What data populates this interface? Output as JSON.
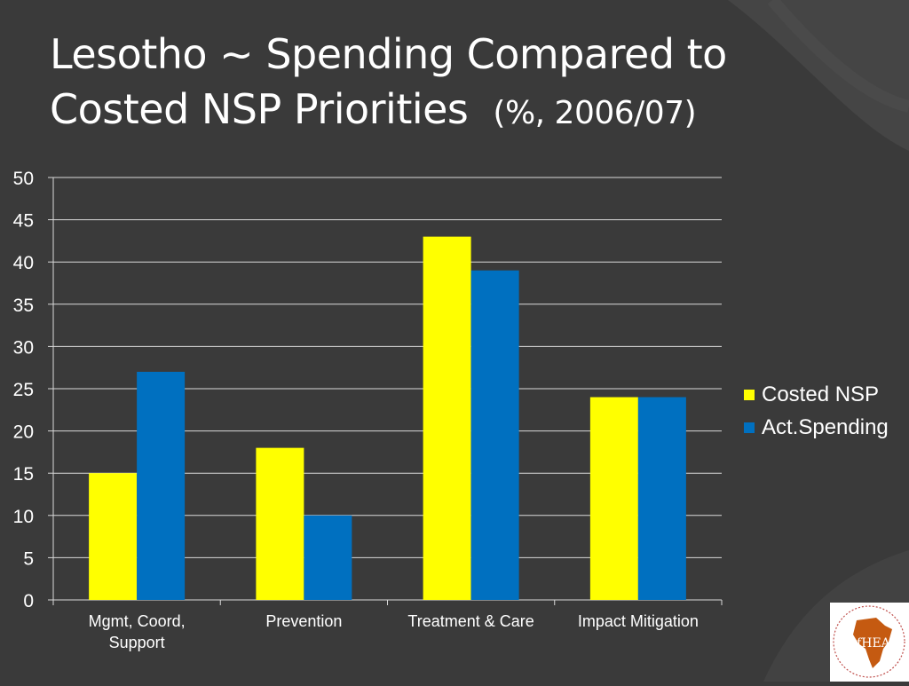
{
  "slide": {
    "title_line1": "Lesotho ~ Spending Compared to",
    "title_line2": "Costed NSP Priorities",
    "title_note": "(%, 2006/07)"
  },
  "colors": {
    "background": "#3a3a3a",
    "costed_nsp": "#ffff00",
    "act_spending": "#0070c0",
    "gridline": "#d9d9d9",
    "text": "#ffffff"
  },
  "chart_data": {
    "type": "bar",
    "categories": [
      "Mgmt, Coord, Support",
      "Prevention",
      "Treatment & Care",
      "Impact Mitigation"
    ],
    "category_lines": [
      [
        "Mgmt, Coord,",
        "Support"
      ],
      [
        "Prevention"
      ],
      [
        "Treatment & Care"
      ],
      [
        "Impact Mitigation"
      ]
    ],
    "series": [
      {
        "name": "Costed NSP",
        "values": [
          15,
          18,
          43,
          24
        ]
      },
      {
        "name": "Act.Spending",
        "values": [
          27,
          10,
          39,
          24
        ]
      }
    ],
    "ylim": [
      0,
      50
    ],
    "yticks": [
      0,
      5,
      10,
      15,
      20,
      25,
      30,
      35,
      40,
      45,
      50
    ],
    "grid": true,
    "legend_position": "right"
  },
  "logo": {
    "icon": "africa-map-icon",
    "text": "AfHEA"
  }
}
